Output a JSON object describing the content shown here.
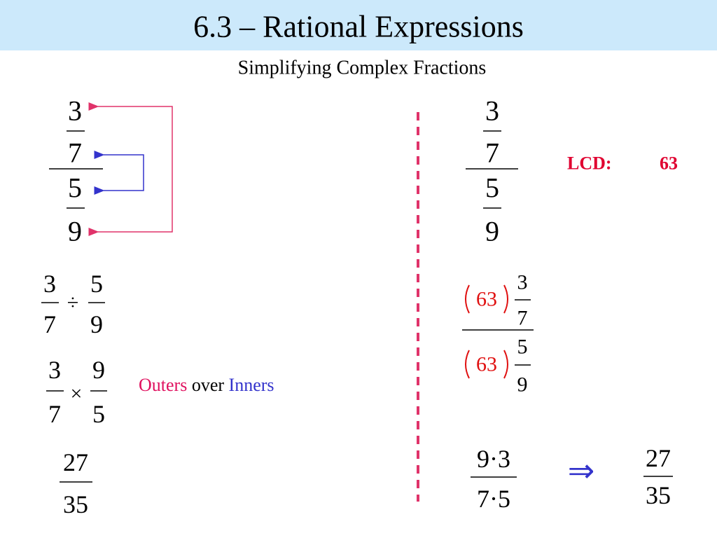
{
  "header": {
    "title": "6.3 – Rational Expressions",
    "subtitle": "Simplifying Complex Fractions"
  },
  "left": {
    "complex_fraction": {
      "top": {
        "num": "3",
        "den": "7"
      },
      "bottom": {
        "num": "5",
        "den": "9"
      }
    },
    "division": {
      "a": {
        "num": "3",
        "den": "7"
      },
      "operator": "÷",
      "b": {
        "num": "5",
        "den": "9"
      }
    },
    "multiplication": {
      "a": {
        "num": "3",
        "den": "7"
      },
      "operator": "×",
      "b": {
        "num": "9",
        "den": "5"
      }
    },
    "result": {
      "num": "27",
      "den": "35"
    },
    "note": {
      "outers": "Outers",
      "over": "over",
      "inners": "Inners"
    }
  },
  "right": {
    "complex_fraction": {
      "top": {
        "num": "3",
        "den": "7"
      },
      "bottom": {
        "num": "5",
        "den": "9"
      }
    },
    "lcd": {
      "label": "LCD:",
      "value": "63"
    },
    "multiplied": {
      "top": {
        "factor": "63",
        "num": "3",
        "den": "7"
      },
      "bottom": {
        "factor": "63",
        "num": "5",
        "den": "9"
      }
    },
    "product": {
      "num": "9·3",
      "den": "7·5"
    },
    "arrow": "⇒",
    "result": {
      "num": "27",
      "den": "35"
    }
  }
}
